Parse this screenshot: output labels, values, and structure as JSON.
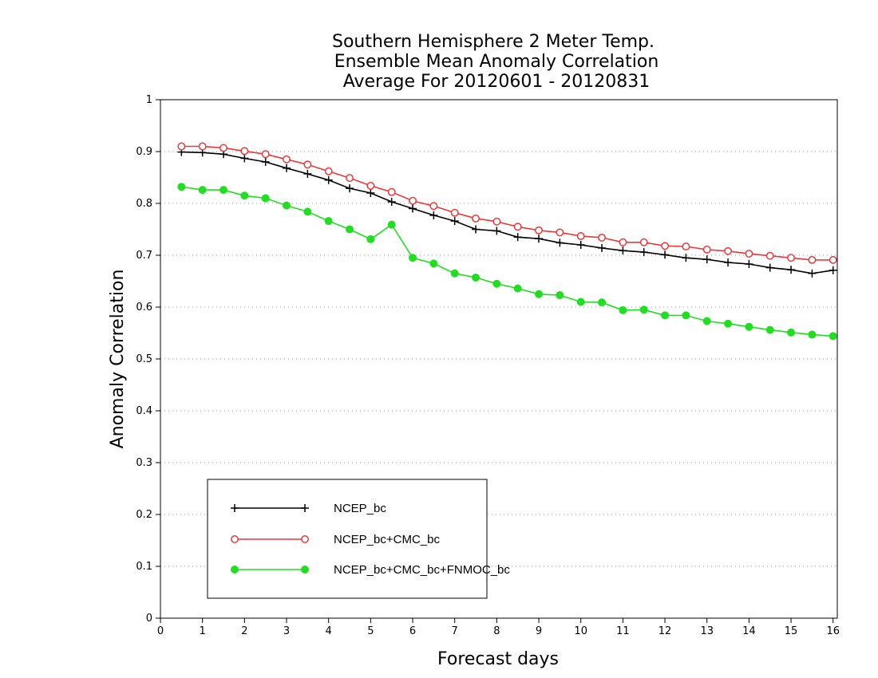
{
  "chart_data": {
    "type": "line",
    "title": [
      "Southern Hemisphere 2 Meter Temp.",
      "Ensemble Mean Anomaly Correlation",
      "Average For 20120601 - 20120831"
    ],
    "xlabel": "Forecast days",
    "ylabel": "Anomaly Correlation",
    "xlim": [
      0,
      16.1
    ],
    "ylim": [
      0,
      1
    ],
    "xticks": [
      0,
      1,
      2,
      3,
      4,
      5,
      6,
      7,
      8,
      9,
      10,
      11,
      12,
      13,
      14,
      15,
      16
    ],
    "yticks": [
      0,
      0.1,
      0.2,
      0.3,
      0.4,
      0.5,
      0.6,
      0.7,
      0.8,
      0.9,
      1
    ],
    "ytick_labels": [
      "0",
      "0.1",
      "0.2",
      "0.3",
      "0.4",
      "0.5",
      "0.6",
      "0.7",
      "0.8",
      "0.9",
      "1"
    ],
    "grid": "horizontal-dotted",
    "legend_position": "bottom-left",
    "x": [
      0.5,
      1,
      1.5,
      2,
      2.5,
      3,
      3.5,
      4,
      4.5,
      5,
      5.5,
      6,
      6.5,
      7,
      7.5,
      8,
      8.5,
      9,
      9.5,
      10,
      10.5,
      11,
      11.5,
      12,
      12.5,
      13,
      13.5,
      14,
      14.5,
      15,
      15.5,
      16
    ],
    "series": [
      {
        "name": "NCEP_bc",
        "color": "#000000",
        "marker": "plus",
        "values": [
          0.899,
          0.898,
          0.895,
          0.887,
          0.88,
          0.868,
          0.857,
          0.845,
          0.829,
          0.82,
          0.803,
          0.79,
          0.777,
          0.766,
          0.75,
          0.747,
          0.735,
          0.732,
          0.724,
          0.72,
          0.714,
          0.709,
          0.706,
          0.701,
          0.695,
          0.692,
          0.686,
          0.683,
          0.676,
          0.672,
          0.665,
          0.671
        ]
      },
      {
        "name": "NCEP_bc+CMC_bc",
        "color": "#e8393b",
        "marker": "open-circle",
        "values": [
          0.91,
          0.91,
          0.907,
          0.901,
          0.895,
          0.885,
          0.875,
          0.862,
          0.849,
          0.834,
          0.822,
          0.805,
          0.795,
          0.782,
          0.771,
          0.765,
          0.755,
          0.748,
          0.744,
          0.737,
          0.734,
          0.725,
          0.725,
          0.718,
          0.717,
          0.711,
          0.708,
          0.703,
          0.699,
          0.695,
          0.691,
          0.691
        ]
      },
      {
        "name": "NCEP_bc+CMC_bc+FNMOC_bc",
        "color": "#22dd22",
        "marker": "filled-circle",
        "values": [
          0.832,
          0.826,
          0.826,
          0.815,
          0.81,
          0.796,
          0.784,
          0.766,
          0.75,
          0.731,
          0.759,
          0.695,
          0.684,
          0.665,
          0.657,
          0.645,
          0.636,
          0.625,
          0.623,
          0.61,
          0.609,
          0.594,
          0.595,
          0.584,
          0.584,
          0.573,
          0.568,
          0.562,
          0.556,
          0.551,
          0.547,
          0.544
        ]
      }
    ]
  }
}
